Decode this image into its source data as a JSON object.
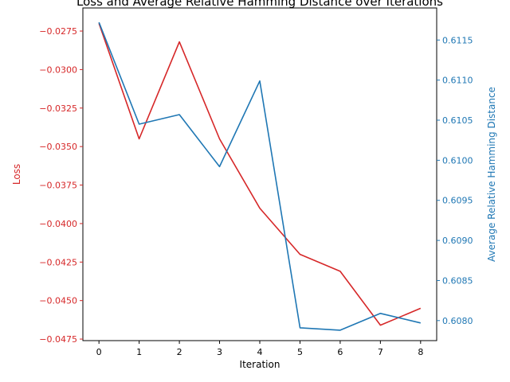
{
  "chart_data": {
    "type": "line",
    "title": "Loss and Average Relative Hamming Distance over Iterations",
    "xlabel": "Iteration",
    "x": [
      0,
      1,
      2,
      3,
      4,
      5,
      6,
      7,
      8
    ],
    "xlim": [
      -0.4,
      8.4
    ],
    "xticks": [
      "0",
      "1",
      "2",
      "3",
      "4",
      "5",
      "6",
      "7",
      "8"
    ],
    "left_axis": {
      "label": "Loss",
      "color": "#d62728",
      "ylim": [
        -0.0476,
        -0.026
      ],
      "ticks": [
        -0.0275,
        -0.03,
        -0.0325,
        -0.035,
        -0.0375,
        -0.04,
        -0.0425,
        -0.045,
        -0.0475
      ],
      "tick_labels": [
        "−0.0275",
        "−0.0300",
        "−0.0325",
        "−0.0350",
        "−0.0375",
        "−0.0400",
        "−0.0425",
        "−0.0450",
        "−0.0475"
      ]
    },
    "right_axis": {
      "label": "Average Relative Hamming Distance",
      "color": "#1f77b4",
      "ylim": [
        0.60775,
        0.6119
      ],
      "ticks": [
        0.608,
        0.6085,
        0.609,
        0.6095,
        0.61,
        0.6105,
        0.611,
        0.6115
      ],
      "tick_labels": [
        "0.6080",
        "0.6085",
        "0.6090",
        "0.6095",
        "0.6100",
        "0.6105",
        "0.6110",
        "0.6115"
      ]
    },
    "series": [
      {
        "name": "Loss",
        "axis": "left",
        "color": "#d62728",
        "values": [
          -0.027,
          -0.0345,
          -0.0282,
          -0.0345,
          -0.039,
          -0.042,
          -0.0431,
          -0.0466,
          -0.0455
        ]
      },
      {
        "name": "Average Relative Hamming Distance",
        "axis": "right",
        "color": "#1f77b4",
        "values": [
          0.61172,
          0.61045,
          0.61057,
          0.60992,
          0.61099,
          0.60791,
          0.60788,
          0.60809,
          0.60797
        ]
      }
    ],
    "grid": false,
    "legend": "none"
  }
}
